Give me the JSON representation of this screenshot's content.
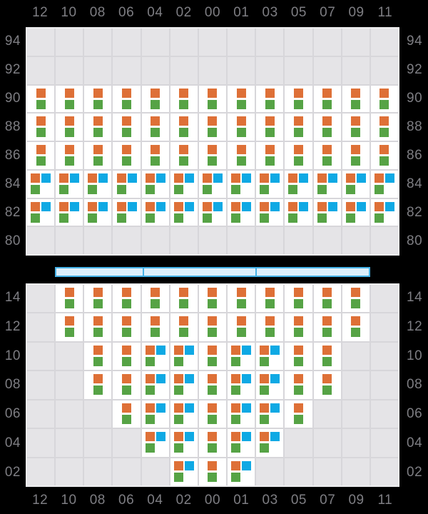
{
  "colors": {
    "background": "#000000",
    "panel_border": "#EDEDEF",
    "panel_gridline": "#D7D6DA",
    "cell_empty": "#E5E4E7",
    "cell_filled": "#FFFFFF",
    "label_text": "#7E7E83",
    "mark_orange": "#DE7037",
    "mark_green": "#56A345",
    "mark_blue": "#0FA9E4",
    "hatch_fill": "#DCEEFA",
    "hatch_border": "#45B1E6"
  },
  "column_labels": [
    "12",
    "10",
    "08",
    "06",
    "04",
    "02",
    "00",
    "01",
    "03",
    "05",
    "07",
    "09",
    "11"
  ],
  "deck_panel": {
    "tier_labels": [
      "94",
      "92",
      "90",
      "88",
      "86",
      "84",
      "82",
      "80"
    ],
    "rows": [
      [
        "",
        "",
        "",
        "",
        "",
        "",
        "",
        "",
        "",
        "",
        "",
        "",
        ""
      ],
      [
        "",
        "",
        "",
        "",
        "",
        "",
        "",
        "",
        "",
        "",
        "",
        "",
        ""
      ],
      [
        "og",
        "og",
        "og",
        "og",
        "og",
        "og",
        "og",
        "og",
        "og",
        "og",
        "og",
        "og",
        "og"
      ],
      [
        "og",
        "og",
        "og",
        "og",
        "og",
        "og",
        "og",
        "og",
        "og",
        "og",
        "og",
        "og",
        "og"
      ],
      [
        "og",
        "og",
        "og",
        "og",
        "og",
        "og",
        "og",
        "og",
        "og",
        "og",
        "og",
        "og",
        "og"
      ],
      [
        "obg",
        "obg",
        "obg",
        "obg",
        "obg",
        "obg",
        "obg",
        "obg",
        "obg",
        "obg",
        "obg",
        "obg",
        "obg"
      ],
      [
        "obg",
        "obg",
        "obg",
        "obg",
        "obg",
        "obg",
        "obg",
        "obg",
        "obg",
        "obg",
        "obg",
        "obg",
        "obg"
      ],
      [
        "",
        "",
        "",
        "",
        "",
        "",
        "",
        "",
        "",
        "",
        "",
        "",
        ""
      ]
    ]
  },
  "hold_panel": {
    "tier_labels": [
      "14",
      "12",
      "10",
      "08",
      "06",
      "04",
      "02"
    ],
    "rows": [
      [
        "",
        "og",
        "og",
        "og",
        "og",
        "og",
        "og",
        "og",
        "og",
        "og",
        "og",
        "og",
        ""
      ],
      [
        "",
        "og",
        "og",
        "og",
        "og",
        "og",
        "og",
        "og",
        "og",
        "og",
        "og",
        "og",
        ""
      ],
      [
        "",
        "",
        "og",
        "og",
        "obg",
        "obg",
        "og",
        "obg",
        "obg",
        "og",
        "og",
        "",
        ""
      ],
      [
        "",
        "",
        "og",
        "og",
        "obg",
        "obg",
        "og",
        "obg",
        "obg",
        "og",
        "og",
        "",
        ""
      ],
      [
        "",
        "",
        "",
        "og",
        "obg",
        "obg",
        "og",
        "obg",
        "obg",
        "og",
        "",
        "",
        ""
      ],
      [
        "",
        "",
        "",
        "",
        "obg",
        "obg",
        "og",
        "obg",
        "obg",
        "",
        "",
        "",
        ""
      ],
      [
        "",
        "",
        "",
        "",
        "",
        "obg",
        "og",
        "obg",
        "",
        "",
        "",
        "",
        ""
      ]
    ]
  },
  "hatch_bar": {
    "segment_widths": [
      122,
      160,
      160
    ]
  },
  "mark_layouts": {
    "og": [
      [
        "orange"
      ],
      [
        "green"
      ]
    ],
    "obg": [
      [
        "orange",
        "blue"
      ],
      [
        "green"
      ]
    ]
  }
}
